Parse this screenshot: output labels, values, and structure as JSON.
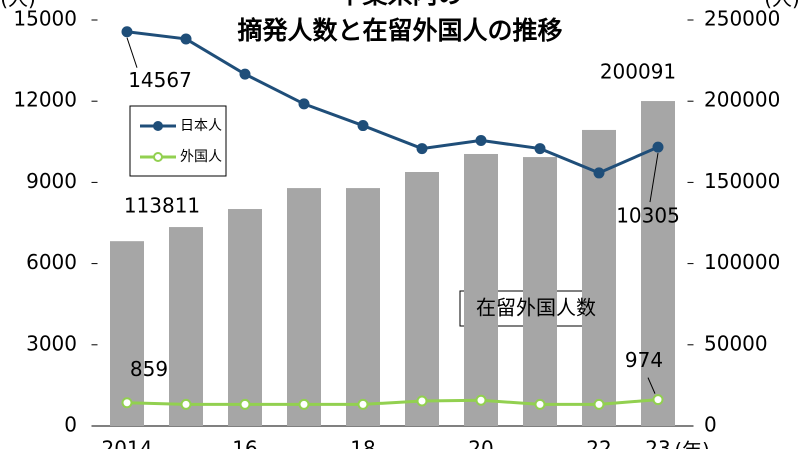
{
  "chart_data": {
    "type": "bar_line",
    "title": "千葉県内の",
    "subtitle": "摘発人数と在留外国人の推移",
    "y_label": "(人)",
    "y2_label": "(人)",
    "x_label": "(年)",
    "categories": [
      "2014",
      null,
      "16",
      null,
      "18",
      null,
      "20",
      null,
      "22",
      "23"
    ],
    "series": [
      {
        "name": "在留外国人数",
        "type": "bar",
        "axis": "y2",
        "color": "#a6a6a6",
        "values": [
          113811,
          122500,
          133600,
          146500,
          146500,
          156400,
          167500,
          165600,
          182300,
          200091
        ]
      },
      {
        "name": "日本人",
        "type": "line",
        "color": "#1f4e79",
        "values": [
          14567,
          14300,
          13000,
          11900,
          11100,
          10250,
          10550,
          10250,
          9350,
          10305
        ]
      },
      {
        "name": "外国人",
        "type": "line",
        "color": "#92d050",
        "values": [
          859,
          800,
          800,
          800,
          800,
          924,
          950,
          800,
          800,
          974
        ]
      }
    ],
    "ylim": [
      0,
      15000
    ],
    "yticks": [
      0,
      3000,
      6000,
      9000,
      12000,
      15000
    ],
    "y2lim": [
      0,
      250000
    ],
    "y2ticks": [
      0,
      50000,
      100000,
      150000,
      200000,
      250000
    ]
  }
}
